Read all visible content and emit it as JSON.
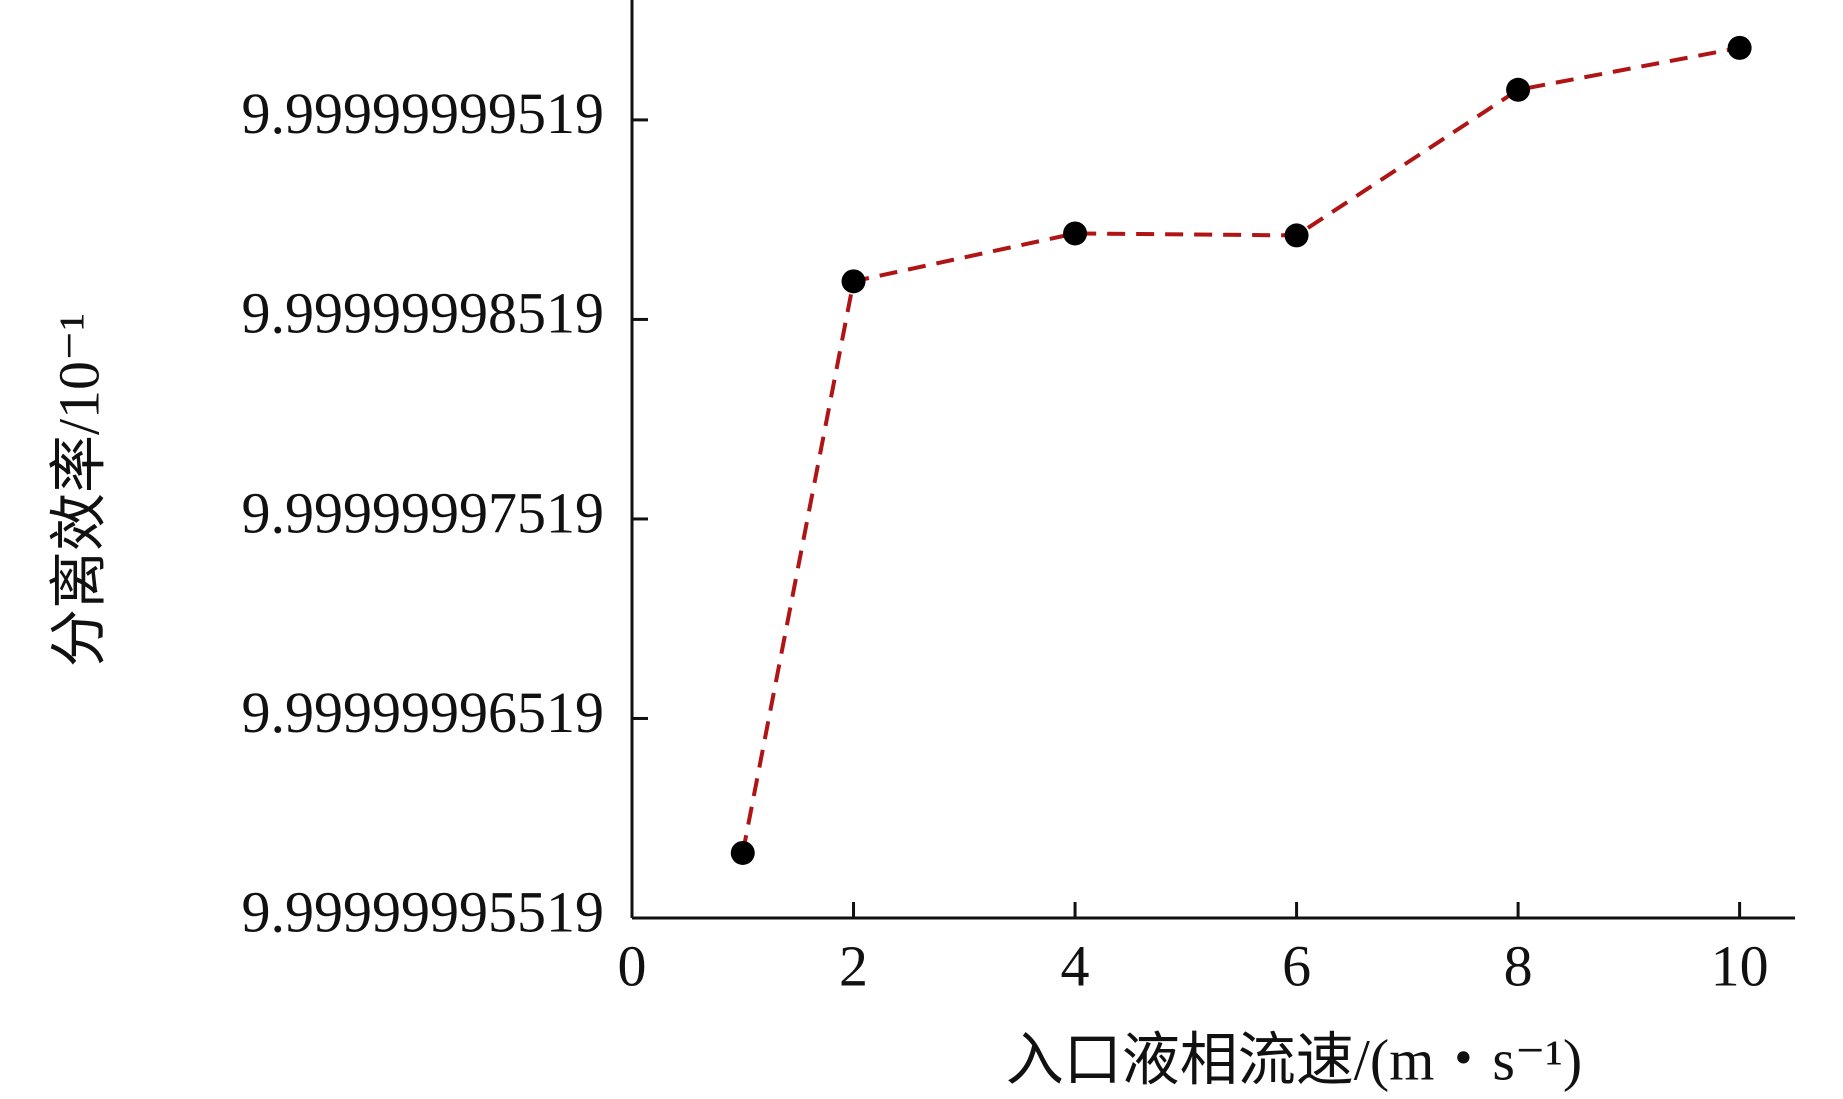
{
  "chart_data": {
    "type": "line",
    "xlabel": "入口液相流速/(m・s⁻¹)",
    "ylabel": "分离效率/10⁻¹",
    "x": [
      1,
      2,
      4,
      6,
      8,
      10
    ],
    "series": [
      {
        "color": "#b01414",
        "marker_color": "#000000",
        "values": [
          9.99999995845,
          9.9999999871,
          9.9999999895,
          9.9999999894,
          9.9999999967,
          9.9999999988
        ]
      }
    ],
    "xlim": [
      0,
      10.5
    ],
    "xticks": [
      0,
      2,
      4,
      6,
      8,
      10
    ],
    "ylim": [
      9.99999995519,
      10.0000000012
    ],
    "yticks": [
      {
        "value": 9.99999995519,
        "label": "9.99999995519"
      },
      {
        "value": 9.99999996519,
        "label": "9.99999996519"
      },
      {
        "value": 9.99999997519,
        "label": "9.99999997519"
      },
      {
        "value": 9.99999998519,
        "label": "9.99999998519"
      },
      {
        "value": 9.99999999519,
        "label": "9.99999999519"
      }
    ],
    "grid": false
  }
}
